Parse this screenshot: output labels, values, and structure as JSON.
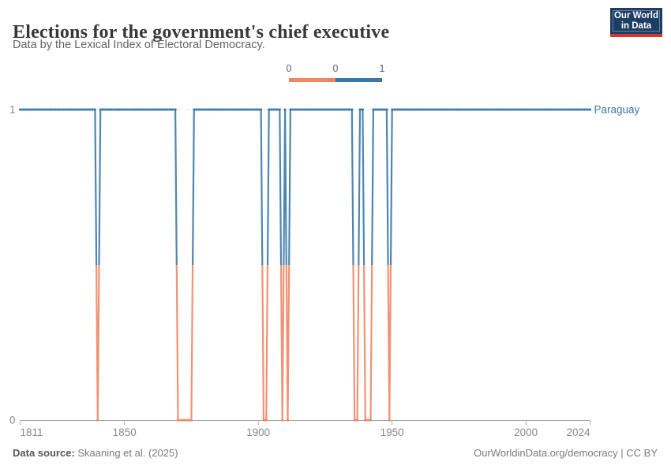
{
  "header": {
    "title": "Elections for the government's chief executive",
    "subtitle": "Data by the Lexical Index of Electoral Democracy.",
    "logo": {
      "line1": "Our World",
      "line2": "in Data"
    }
  },
  "legend": {
    "labels": [
      "0",
      "0",
      "1"
    ]
  },
  "chart_data": {
    "type": "line",
    "title": "Elections for the government's chief executive",
    "subtitle": "Data by the Lexical Index of Electoral Democracy.",
    "entity": "Paraguay",
    "x_range": [
      1811,
      2024
    ],
    "y_range": [
      0,
      1
    ],
    "x_ticks": [
      1811,
      1850,
      1900,
      1950,
      2000,
      2024
    ],
    "y_ticks": [
      0,
      1
    ],
    "grid": "dashed horizontal gridline at y=1, solid axis line at y=0",
    "legend": {
      "position": "top-center",
      "edge_labels": [
        "0",
        "0",
        "1"
      ],
      "stops": [
        {
          "value": 0,
          "color": "#EE8665"
        },
        {
          "value": 1,
          "color": "#3B79A8"
        }
      ]
    },
    "colors": {
      "value0": "#EE8665",
      "value1": "#3B79A8"
    },
    "series": [
      {
        "name": "Paraguay",
        "segments": [
          {
            "from": 1811,
            "to": 1839,
            "value": 1
          },
          {
            "from": 1840,
            "to": 1840,
            "value": 0
          },
          {
            "from": 1841,
            "to": 1869,
            "value": 1
          },
          {
            "from": 1870,
            "to": 1875,
            "value": 0
          },
          {
            "from": 1876,
            "to": 1901,
            "value": 1
          },
          {
            "from": 1902,
            "to": 1903,
            "value": 0
          },
          {
            "from": 1904,
            "to": 1908,
            "value": 1
          },
          {
            "from": 1909,
            "to": 1909,
            "value": 0
          },
          {
            "from": 1910,
            "to": 1910,
            "value": 1
          },
          {
            "from": 1911,
            "to": 1911,
            "value": 0
          },
          {
            "from": 1912,
            "to": 1935,
            "value": 1
          },
          {
            "from": 1936,
            "to": 1937,
            "value": 0
          },
          {
            "from": 1938,
            "to": 1939,
            "value": 1
          },
          {
            "from": 1940,
            "to": 1942,
            "value": 0
          },
          {
            "from": 1943,
            "to": 1948,
            "value": 1
          },
          {
            "from": 1949,
            "to": 1949,
            "value": 0
          },
          {
            "from": 1950,
            "to": 2024,
            "value": 1
          }
        ]
      }
    ]
  },
  "footer": {
    "source_label": "Data source:",
    "source_text": " Skaaning et al. (2025)",
    "right": "OurWorldinData.org/democracy | CC BY"
  }
}
